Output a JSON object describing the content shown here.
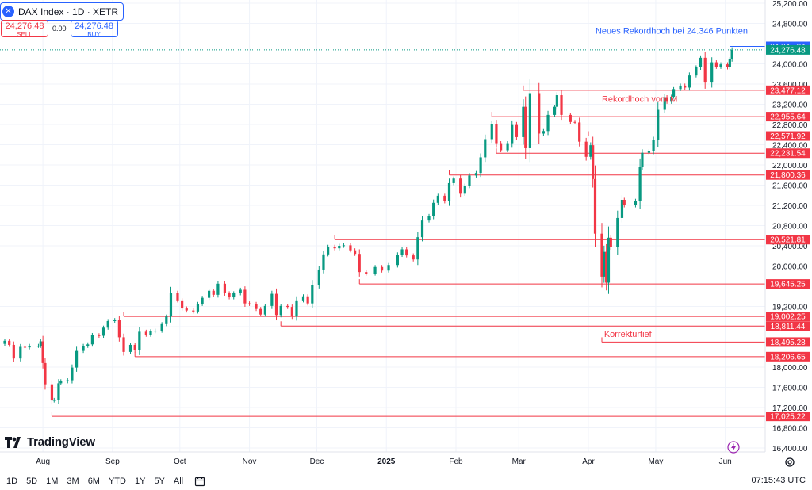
{
  "header": {
    "symbol_icon": "x-icon",
    "title": "DAX Index · 1D · XETR"
  },
  "trade": {
    "sell_price": "24,276.48",
    "sell_label": "SELL",
    "spread": "0.00",
    "buy_price": "24,276.48",
    "buy_label": "BUY"
  },
  "brand": {
    "name": "TradingView"
  },
  "bottombar": {
    "ranges": [
      "1D",
      "5D",
      "1M",
      "3M",
      "6M",
      "YTD",
      "1Y",
      "5Y",
      "All"
    ],
    "clock": "07:15:43 UTC"
  },
  "colors": {
    "up": "#089981",
    "down": "#f23645",
    "accent": "#2962ff",
    "grid": "#f0f3fa"
  },
  "chart_data": {
    "type": "candlestick",
    "ylim": [
      16400,
      25200
    ],
    "y_ticks": [
      "25,200.00",
      "24,800.00",
      "24,000.00",
      "23,600.00",
      "23,200.00",
      "22,800.00",
      "22,400.00",
      "22,000.00",
      "21,600.00",
      "21,200.00",
      "20,800.00",
      "20,400.00",
      "20,000.00",
      "19,200.00",
      "18,800.00",
      "18,000.00",
      "17,600.00",
      "17,200.00",
      "16,800.00",
      "16,400.00"
    ],
    "x_ticks": [
      "Aug",
      "Sep",
      "Oct",
      "Nov",
      "Dec",
      "2025",
      "Feb",
      "Mar",
      "Apr",
      "May",
      "Jun"
    ],
    "x_range": [
      "2024-07-15",
      "2025-06-05"
    ],
    "current_price": {
      "value": 24276.48,
      "label": "24,276.48"
    },
    "high_marker": {
      "value": 24345.04,
      "label": "24,345.04"
    },
    "levels": [
      {
        "value": 23477.12,
        "label": "23,477.12",
        "from": "2025-03-03"
      },
      {
        "value": 22955.64,
        "label": "22,955.64",
        "from": "2025-02-17"
      },
      {
        "value": 22571.92,
        "label": "22,571.92",
        "from": "2025-04-01"
      },
      {
        "value": 22231.54,
        "label": "22,231.54",
        "from": "2025-02-19"
      },
      {
        "value": 21800.36,
        "label": "21,800.36",
        "from": "2025-01-29"
      },
      {
        "value": 20521.81,
        "label": "20,521.81",
        "from": "2024-12-09"
      },
      {
        "value": 19645.25,
        "label": "19,645.25",
        "from": "2024-12-20"
      },
      {
        "value": 19002.25,
        "label": "19,002.25",
        "from": "2024-09-06"
      },
      {
        "value": 18811.44,
        "label": "18,811.44",
        "from": "2024-11-15"
      },
      {
        "value": 18495.28,
        "label": "18,495.28",
        "from": "2025-04-07"
      },
      {
        "value": 18206.65,
        "label": "18,206.65",
        "from": "2024-09-11"
      },
      {
        "value": 17025.22,
        "label": "17,025.22",
        "from": "2024-08-05"
      }
    ],
    "annotations": [
      {
        "text": "Neues Rekordhoch bei 24.346 Punkten",
        "date": "2025-05-21",
        "value": 24600,
        "color": "#2962ff"
      },
      {
        "text": "Rekordhoch vom M",
        "date": "2025-04-07",
        "value": 23250,
        "color": "#f23645"
      },
      {
        "text": "Korrekturtief",
        "date": "2025-04-08",
        "value": 18600,
        "color": "#f23645"
      }
    ],
    "closes": [
      {
        "date": "2024-07-15",
        "c": 18520
      },
      {
        "date": "2024-07-17",
        "c": 18440
      },
      {
        "date": "2024-07-19",
        "c": 18170
      },
      {
        "date": "2024-07-22",
        "c": 18400
      },
      {
        "date": "2024-07-24",
        "c": 18390
      },
      {
        "date": "2024-07-26",
        "c": 18420
      },
      {
        "date": "2024-07-30",
        "c": 18420
      },
      {
        "date": "2024-07-31",
        "c": 18510
      },
      {
        "date": "2024-08-01",
        "c": 18080
      },
      {
        "date": "2024-08-02",
        "c": 17660
      },
      {
        "date": "2024-08-05",
        "c": 17340
      },
      {
        "date": "2024-08-06",
        "c": 17350
      },
      {
        "date": "2024-08-08",
        "c": 17680
      },
      {
        "date": "2024-08-09",
        "c": 17720
      },
      {
        "date": "2024-08-12",
        "c": 17740
      },
      {
        "date": "2024-08-14",
        "c": 17990
      },
      {
        "date": "2024-08-16",
        "c": 18320
      },
      {
        "date": "2024-08-19",
        "c": 18420
      },
      {
        "date": "2024-08-21",
        "c": 18450
      },
      {
        "date": "2024-08-23",
        "c": 18630
      },
      {
        "date": "2024-08-26",
        "c": 18620
      },
      {
        "date": "2024-08-28",
        "c": 18780
      },
      {
        "date": "2024-08-30",
        "c": 18910
      },
      {
        "date": "2024-09-02",
        "c": 18930
      },
      {
        "date": "2024-09-04",
        "c": 18590
      },
      {
        "date": "2024-09-06",
        "c": 18300
      },
      {
        "date": "2024-09-09",
        "c": 18440
      },
      {
        "date": "2024-09-11",
        "c": 18330
      },
      {
        "date": "2024-09-13",
        "c": 18700
      },
      {
        "date": "2024-09-16",
        "c": 18640
      },
      {
        "date": "2024-09-18",
        "c": 18710
      },
      {
        "date": "2024-09-20",
        "c": 18720
      },
      {
        "date": "2024-09-23",
        "c": 18850
      },
      {
        "date": "2024-09-25",
        "c": 19000
      },
      {
        "date": "2024-09-27",
        "c": 19470
      },
      {
        "date": "2024-09-30",
        "c": 19320
      },
      {
        "date": "2024-10-02",
        "c": 19160
      },
      {
        "date": "2024-10-04",
        "c": 19120
      },
      {
        "date": "2024-10-07",
        "c": 19100
      },
      {
        "date": "2024-10-09",
        "c": 19250
      },
      {
        "date": "2024-10-11",
        "c": 19370
      },
      {
        "date": "2024-10-14",
        "c": 19510
      },
      {
        "date": "2024-10-16",
        "c": 19430
      },
      {
        "date": "2024-10-18",
        "c": 19650
      },
      {
        "date": "2024-10-21",
        "c": 19460
      },
      {
        "date": "2024-10-23",
        "c": 19380
      },
      {
        "date": "2024-10-25",
        "c": 19460
      },
      {
        "date": "2024-10-28",
        "c": 19530
      },
      {
        "date": "2024-10-30",
        "c": 19260
      },
      {
        "date": "2024-11-01",
        "c": 19250
      },
      {
        "date": "2024-11-04",
        "c": 19150
      },
      {
        "date": "2024-11-06",
        "c": 19040
      },
      {
        "date": "2024-11-08",
        "c": 19210
      },
      {
        "date": "2024-11-11",
        "c": 19450
      },
      {
        "date": "2024-11-13",
        "c": 19030
      },
      {
        "date": "2024-11-15",
        "c": 19210
      },
      {
        "date": "2024-11-18",
        "c": 19190
      },
      {
        "date": "2024-11-20",
        "c": 19000
      },
      {
        "date": "2024-11-22",
        "c": 19320
      },
      {
        "date": "2024-11-25",
        "c": 19400
      },
      {
        "date": "2024-11-27",
        "c": 19260
      },
      {
        "date": "2024-11-29",
        "c": 19630
      },
      {
        "date": "2024-12-02",
        "c": 19930
      },
      {
        "date": "2024-12-04",
        "c": 20230
      },
      {
        "date": "2024-12-06",
        "c": 20380
      },
      {
        "date": "2024-12-09",
        "c": 20350
      },
      {
        "date": "2024-12-11",
        "c": 20400
      },
      {
        "date": "2024-12-13",
        "c": 20410
      },
      {
        "date": "2024-12-16",
        "c": 20310
      },
      {
        "date": "2024-12-18",
        "c": 20240
      },
      {
        "date": "2024-12-20",
        "c": 19880
      },
      {
        "date": "2024-12-23",
        "c": 19850
      },
      {
        "date": "2024-12-27",
        "c": 19980
      },
      {
        "date": "2024-12-30",
        "c": 19910
      },
      {
        "date": "2025-01-02",
        "c": 20020
      },
      {
        "date": "2025-01-06",
        "c": 20220
      },
      {
        "date": "2025-01-08",
        "c": 20330
      },
      {
        "date": "2025-01-10",
        "c": 20210
      },
      {
        "date": "2025-01-13",
        "c": 20130
      },
      {
        "date": "2025-01-15",
        "c": 20570
      },
      {
        "date": "2025-01-17",
        "c": 20900
      },
      {
        "date": "2025-01-20",
        "c": 20990
      },
      {
        "date": "2025-01-22",
        "c": 21250
      },
      {
        "date": "2025-01-24",
        "c": 21390
      },
      {
        "date": "2025-01-27",
        "c": 21280
      },
      {
        "date": "2025-01-29",
        "c": 21640
      },
      {
        "date": "2025-01-31",
        "c": 21730
      },
      {
        "date": "2025-02-03",
        "c": 21430
      },
      {
        "date": "2025-02-05",
        "c": 21590
      },
      {
        "date": "2025-02-07",
        "c": 21790
      },
      {
        "date": "2025-02-10",
        "c": 21840
      },
      {
        "date": "2025-02-12",
        "c": 22150
      },
      {
        "date": "2025-02-14",
        "c": 22510
      },
      {
        "date": "2025-02-17",
        "c": 22800
      },
      {
        "date": "2025-02-19",
        "c": 22430
      },
      {
        "date": "2025-02-21",
        "c": 22290
      },
      {
        "date": "2025-02-24",
        "c": 22430
      },
      {
        "date": "2025-02-26",
        "c": 22790
      },
      {
        "date": "2025-02-28",
        "c": 22550
      },
      {
        "date": "2025-03-03",
        "c": 23150
      },
      {
        "date": "2025-03-04",
        "c": 22330
      },
      {
        "date": "2025-03-06",
        "c": 23420
      },
      {
        "date": "2025-03-10",
        "c": 22620
      },
      {
        "date": "2025-03-12",
        "c": 22670
      },
      {
        "date": "2025-03-14",
        "c": 22990
      },
      {
        "date": "2025-03-17",
        "c": 23150
      },
      {
        "date": "2025-03-18",
        "c": 23380
      },
      {
        "date": "2025-03-20",
        "c": 22990
      },
      {
        "date": "2025-03-24",
        "c": 22850
      },
      {
        "date": "2025-03-26",
        "c": 22840
      },
      {
        "date": "2025-03-28",
        "c": 22460
      },
      {
        "date": "2025-03-31",
        "c": 22160
      },
      {
        "date": "2025-04-02",
        "c": 22390
      },
      {
        "date": "2025-04-03",
        "c": 21720
      },
      {
        "date": "2025-04-04",
        "c": 20640
      },
      {
        "date": "2025-04-07",
        "c": 19790
      },
      {
        "date": "2025-04-08",
        "c": 20280
      },
      {
        "date": "2025-04-09",
        "c": 19670
      },
      {
        "date": "2025-04-10",
        "c": 20560
      },
      {
        "date": "2025-04-11",
        "c": 20370
      },
      {
        "date": "2025-04-14",
        "c": 20950
      },
      {
        "date": "2025-04-16",
        "c": 21310
      },
      {
        "date": "2025-04-17",
        "c": 21200
      },
      {
        "date": "2025-04-22",
        "c": 21290
      },
      {
        "date": "2025-04-24",
        "c": 21960
      },
      {
        "date": "2025-04-25",
        "c": 22240
      },
      {
        "date": "2025-04-28",
        "c": 22270
      },
      {
        "date": "2025-04-30",
        "c": 22500
      },
      {
        "date": "2025-05-02",
        "c": 23090
      },
      {
        "date": "2025-05-05",
        "c": 23340
      },
      {
        "date": "2025-05-06",
        "c": 23250
      },
      {
        "date": "2025-05-08",
        "c": 23350
      },
      {
        "date": "2025-05-09",
        "c": 23500
      },
      {
        "date": "2025-05-12",
        "c": 23570
      },
      {
        "date": "2025-05-14",
        "c": 23530
      },
      {
        "date": "2025-05-16",
        "c": 23770
      },
      {
        "date": "2025-05-19",
        "c": 23930
      },
      {
        "date": "2025-05-21",
        "c": 24120
      },
      {
        "date": "2025-05-23",
        "c": 23630
      },
      {
        "date": "2025-05-26",
        "c": 24030
      },
      {
        "date": "2025-05-28",
        "c": 23940
      },
      {
        "date": "2025-05-30",
        "c": 23990
      },
      {
        "date": "2025-06-02",
        "c": 23930
      },
      {
        "date": "2025-06-03",
        "c": 24090
      },
      {
        "date": "2025-06-04",
        "c": 24280
      }
    ]
  }
}
